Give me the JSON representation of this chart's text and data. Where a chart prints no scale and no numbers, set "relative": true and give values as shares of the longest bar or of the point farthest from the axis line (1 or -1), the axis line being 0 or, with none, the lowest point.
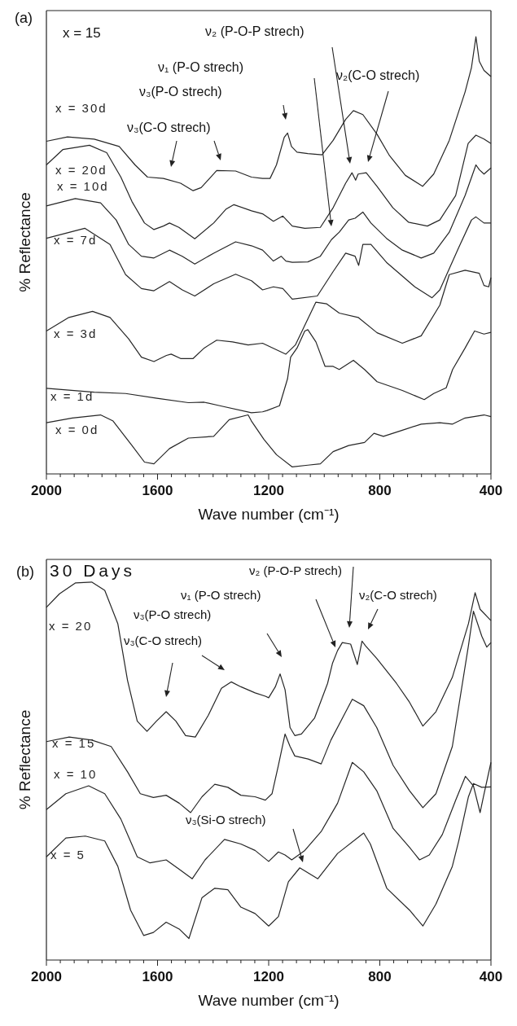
{
  "chart_data": [
    {
      "type": "line",
      "relative": true,
      "tick_labels": "x",
      "xlabel": "Wave number (cm⁻¹)",
      "ylabel": "% Reflectance",
      "xlim": [
        2000,
        400
      ],
      "xticks": [
        2000,
        {
          "value": 1950,
          "label": null
        },
        {
          "value": 1900,
          "label": null
        },
        {
          "value": 1850,
          "label": null
        },
        {
          "value": 1800,
          "label": null
        },
        {
          "value": 1750,
          "label": null
        },
        {
          "value": 1700,
          "label": null
        },
        {
          "value": 1650,
          "label": null
        },
        1600,
        {
          "value": 1550,
          "label": null
        },
        {
          "value": 1500,
          "label": null
        },
        {
          "value": 1450,
          "label": null
        },
        {
          "value": 1400,
          "label": null
        },
        {
          "value": 1350,
          "label": null
        },
        {
          "value": 1300,
          "label": null
        },
        {
          "value": 1250,
          "label": null
        },
        1200,
        {
          "value": 1150,
          "label": null
        },
        {
          "value": 1100,
          "label": null
        },
        {
          "value": 1050,
          "label": null
        },
        {
          "value": 1000,
          "label": null
        },
        {
          "value": 950,
          "label": null
        },
        {
          "value": 900,
          "label": null
        },
        {
          "value": 850,
          "label": null
        },
        800,
        {
          "value": 750,
          "label": null
        },
        {
          "value": 700,
          "label": null
        },
        {
          "value": 650,
          "label": null
        },
        {
          "value": 600,
          "label": null
        },
        {
          "value": 550,
          "label": null
        },
        {
          "value": 500,
          "label": null
        },
        {
          "value": 450,
          "label": null
        },
        400
      ],
      "annotations": [
        "(a)",
        "x = 15",
        "ν₂ (P-O-P strech)",
        "ν₁  (P-O strech)",
        "ν₃(P-O strech)",
        "ν₃(C-O strech)",
        "ν₂(C-O strech)"
      ],
      "series": [
        {
          "name": "x = 30d",
          "color": "#262626",
          "x": [
            2000,
            1924,
            1828,
            1738,
            1681,
            1636,
            1579,
            1517,
            1472,
            1443,
            1387,
            1319,
            1262,
            1222,
            1195,
            1172,
            1144,
            1132,
            1118,
            1098,
            1059,
            1008,
            968,
            923,
            895,
            861,
            810,
            765,
            708,
            646,
            606,
            550,
            493,
            470,
            454,
            442,
            425,
            400
          ],
          "values": [
            0.761,
            0.771,
            0.766,
            0.749,
            0.707,
            0.679,
            0.676,
            0.665,
            0.648,
            0.655,
            0.694,
            0.693,
            0.679,
            0.676,
            0.676,
            0.707,
            0.77,
            0.78,
            0.749,
            0.736,
            0.733,
            0.73,
            0.763,
            0.811,
            0.831,
            0.822,
            0.777,
            0.728,
            0.683,
            0.658,
            0.686,
            0.763,
            0.874,
            0.93,
            1,
            0.944,
            0.923,
            0.909
          ]
        },
        {
          "name": "x = 20d",
          "color": "#262626",
          "x": [
            2000,
            1941,
            1845,
            1783,
            1732,
            1692,
            1647,
            1613,
            1579,
            1557,
            1523,
            1466,
            1398,
            1353,
            1325,
            1262,
            1222,
            1183,
            1149,
            1115,
            1070,
            1014,
            968,
            923,
            900,
            887,
            878,
            849,
            810,
            753,
            697,
            629,
            584,
            527,
            482,
            454,
            425,
            400
          ],
          "values": [
            0.707,
            0.742,
            0.752,
            0.735,
            0.679,
            0.623,
            0.574,
            0.559,
            0.567,
            0.574,
            0.564,
            0.538,
            0.574,
            0.606,
            0.616,
            0.602,
            0.595,
            0.578,
            0.59,
            0.567,
            0.562,
            0.564,
            0.609,
            0.665,
            0.689,
            0.672,
            0.686,
            0.689,
            0.658,
            0.609,
            0.576,
            0.567,
            0.581,
            0.637,
            0.756,
            0.775,
            0.766,
            0.756
          ]
        },
        {
          "name": "x = 10d",
          "color": "#262626",
          "x": [
            2000,
            1896,
            1805,
            1749,
            1704,
            1658,
            1613,
            1557,
            1511,
            1466,
            1398,
            1319,
            1262,
            1222,
            1183,
            1155,
            1138,
            1115,
            1059,
            1014,
            974,
            946,
            912,
            889,
            861,
            832,
            776,
            719,
            651,
            606,
            550,
            493,
            454,
            442,
            425,
            400
          ],
          "values": [
            0.613,
            0.63,
            0.62,
            0.581,
            0.525,
            0.498,
            0.494,
            0.512,
            0.498,
            0.48,
            0.505,
            0.531,
            0.522,
            0.512,
            0.487,
            0.498,
            0.487,
            0.484,
            0.485,
            0.498,
            0.536,
            0.553,
            0.581,
            0.585,
            0.599,
            0.574,
            0.539,
            0.512,
            0.494,
            0.505,
            0.553,
            0.637,
            0.707,
            0.696,
            0.686,
            0.7
          ]
        },
        {
          "name": "x = 7d",
          "color": "#262626",
          "x": [
            2000,
            1862,
            1771,
            1715,
            1658,
            1613,
            1557,
            1511,
            1466,
            1398,
            1319,
            1262,
            1222,
            1183,
            1149,
            1115,
            1025,
            968,
            923,
            889,
            876,
            861,
            832,
            776,
            674,
            612,
            584,
            516,
            470,
            454,
            425,
            400
          ],
          "values": [
            0.539,
            0.562,
            0.525,
            0.456,
            0.424,
            0.419,
            0.44,
            0.421,
            0.407,
            0.435,
            0.457,
            0.442,
            0.421,
            0.428,
            0.424,
            0.4,
            0.407,
            0.463,
            0.505,
            0.498,
            0.477,
            0.525,
            0.525,
            0.484,
            0.428,
            0.403,
            0.421,
            0.518,
            0.581,
            0.588,
            0.574,
            0.574
          ]
        },
        {
          "name": "x = 3d",
          "color": "#262626",
          "x": [
            2000,
            1919,
            1834,
            1771,
            1704,
            1658,
            1613,
            1568,
            1551,
            1517,
            1472,
            1432,
            1387,
            1330,
            1274,
            1222,
            1138,
            1104,
            1030,
            991,
            946,
            878,
            810,
            719,
            651,
            584,
            550,
            493,
            442,
            425,
            408,
            400
          ],
          "values": [
            0.327,
            0.358,
            0.372,
            0.358,
            0.309,
            0.267,
            0.257,
            0.271,
            0.274,
            0.264,
            0.264,
            0.288,
            0.306,
            0.302,
            0.295,
            0.299,
            0.274,
            0.295,
            0.393,
            0.389,
            0.368,
            0.358,
            0.323,
            0.299,
            0.316,
            0.386,
            0.456,
            0.466,
            0.459,
            0.431,
            0.428,
            0.449
          ]
        },
        {
          "name": "x = 1d",
          "color": "#262626",
          "x": [
            2000,
            1828,
            1715,
            1602,
            1489,
            1432,
            1376,
            1262,
            1222,
            1206,
            1161,
            1132,
            1121,
            1098,
            1070,
            1059,
            1030,
            997,
            968,
            946,
            895,
            855,
            810,
            719,
            640,
            606,
            561,
            538,
            493,
            459,
            425,
            400
          ],
          "values": [
            0.196,
            0.187,
            0.184,
            0.173,
            0.163,
            0.164,
            0.156,
            0.14,
            0.142,
            0.145,
            0.156,
            0.218,
            0.267,
            0.288,
            0.327,
            0.33,
            0.302,
            0.246,
            0.246,
            0.239,
            0.26,
            0.239,
            0.211,
            0.191,
            0.17,
            0.184,
            0.197,
            0.239,
            0.288,
            0.327,
            0.32,
            0.324
          ]
        },
        {
          "name": "x = 0d",
          "color": "#262626",
          "x": [
            2000,
            1907,
            1805,
            1760,
            1692,
            1647,
            1613,
            1557,
            1489,
            1398,
            1342,
            1274,
            1262,
            1217,
            1172,
            1115,
            1059,
            1014,
            968,
            912,
            855,
            821,
            787,
            719,
            651,
            584,
            538,
            493,
            425,
            400
          ],
          "values": [
            0.117,
            0.128,
            0.135,
            0.121,
            0.065,
            0.027,
            0.023,
            0.058,
            0.082,
            0.086,
            0.124,
            0.135,
            0.121,
            0.079,
            0.044,
            0.016,
            0.02,
            0.023,
            0.051,
            0.065,
            0.072,
            0.093,
            0.086,
            0.1,
            0.114,
            0.117,
            0.114,
            0.128,
            0.135,
            0.131
          ]
        }
      ]
    },
    {
      "type": "line",
      "relative": true,
      "tick_labels": "x",
      "xlabel": "Wave number (cm⁻¹)",
      "ylabel": "% Reflectance",
      "xlim": [
        2000,
        400
      ],
      "xticks": [
        2000,
        {
          "value": 1950,
          "label": null
        },
        {
          "value": 1900,
          "label": null
        },
        {
          "value": 1850,
          "label": null
        },
        {
          "value": 1800,
          "label": null
        },
        {
          "value": 1750,
          "label": null
        },
        {
          "value": 1700,
          "label": null
        },
        {
          "value": 1650,
          "label": null
        },
        1600,
        {
          "value": 1550,
          "label": null
        },
        {
          "value": 1500,
          "label": null
        },
        {
          "value": 1450,
          "label": null
        },
        {
          "value": 1400,
          "label": null
        },
        {
          "value": 1350,
          "label": null
        },
        {
          "value": 1300,
          "label": null
        },
        {
          "value": 1250,
          "label": null
        },
        1200,
        {
          "value": 1150,
          "label": null
        },
        {
          "value": 1100,
          "label": null
        },
        {
          "value": 1050,
          "label": null
        },
        {
          "value": 1000,
          "label": null
        },
        {
          "value": 950,
          "label": null
        },
        {
          "value": 900,
          "label": null
        },
        {
          "value": 850,
          "label": null
        },
        800,
        {
          "value": 750,
          "label": null
        },
        {
          "value": 700,
          "label": null
        },
        {
          "value": 650,
          "label": null
        },
        {
          "value": 600,
          "label": null
        },
        {
          "value": 550,
          "label": null
        },
        {
          "value": 500,
          "label": null
        },
        {
          "value": 450,
          "label": null
        },
        400
      ],
      "annotations": [
        "(b)",
        "30 Days",
        "ν₂ (P-O-P strech)",
        "ν₁  (P-O strech)",
        "ν₃(P-O strech)",
        "ν₃(C-O strech)",
        "ν₂(C-O strech)",
        "ν₃(Si-O strech)"
      ],
      "series": [
        {
          "name": "x = 20",
          "color": "#262626",
          "x": [
            2000,
            1953,
            1895,
            1837,
            1790,
            1743,
            1708,
            1673,
            1638,
            1604,
            1569,
            1534,
            1499,
            1464,
            1417,
            1370,
            1335,
            1300,
            1249,
            1212,
            1200,
            1176,
            1159,
            1141,
            1123,
            1106,
            1082,
            1035,
            988,
            970,
            952,
            935,
            905,
            881,
            864,
            852,
            811,
            740,
            693,
            645,
            598,
            539,
            481,
            457,
            439,
            400
          ],
          "values": [
            0.933,
            0.969,
            0.998,
            1.0,
            0.978,
            0.89,
            0.74,
            0.632,
            0.605,
            0.632,
            0.657,
            0.632,
            0.594,
            0.59,
            0.648,
            0.719,
            0.736,
            0.723,
            0.707,
            0.698,
            0.694,
            0.723,
            0.757,
            0.715,
            0.615,
            0.594,
            0.598,
            0.64,
            0.732,
            0.786,
            0.819,
            0.84,
            0.836,
            0.782,
            0.844,
            0.832,
            0.798,
            0.732,
            0.682,
            0.619,
            0.657,
            0.748,
            0.89,
            0.972,
            0.928,
            0.898
          ]
        },
        {
          "name": "x = 15",
          "color": "#262626",
          "x": [
            2000,
            1918,
            1837,
            1767,
            1708,
            1662,
            1615,
            1569,
            1522,
            1481,
            1440,
            1394,
            1347,
            1300,
            1249,
            1212,
            1188,
            1165,
            1141,
            1123,
            1106,
            1058,
            1011,
            976,
            929,
            899,
            858,
            811,
            752,
            693,
            645,
            598,
            539,
            481,
            463,
            433,
            415,
            400
          ],
          "values": [
            0.578,
            0.59,
            0.582,
            0.565,
            0.498,
            0.44,
            0.43,
            0.436,
            0.415,
            0.39,
            0.432,
            0.465,
            0.457,
            0.436,
            0.432,
            0.423,
            0.44,
            0.515,
            0.598,
            0.565,
            0.54,
            0.532,
            0.519,
            0.582,
            0.648,
            0.69,
            0.673,
            0.615,
            0.515,
            0.448,
            0.403,
            0.44,
            0.565,
            0.832,
            0.923,
            0.857,
            0.828,
            0.84
          ]
        },
        {
          "name": "x = 10",
          "color": "#262626",
          "x": [
            2000,
            1930,
            1848,
            1790,
            1732,
            1673,
            1627,
            1569,
            1522,
            1475,
            1429,
            1359,
            1300,
            1249,
            1200,
            1165,
            1141,
            1117,
            1070,
            1011,
            952,
            899,
            858,
            811,
            752,
            693,
            657,
            622,
            575,
            527,
            492,
            463,
            439,
            427,
            400
          ],
          "values": [
            0.398,
            0.44,
            0.461,
            0.44,
            0.373,
            0.273,
            0.257,
            0.265,
            0.24,
            0.215,
            0.265,
            0.319,
            0.307,
            0.29,
            0.261,
            0.286,
            0.278,
            0.265,
            0.29,
            0.34,
            0.415,
            0.523,
            0.498,
            0.448,
            0.348,
            0.298,
            0.265,
            0.278,
            0.332,
            0.423,
            0.486,
            0.461,
            0.39,
            0.432,
            0.523
          ]
        },
        {
          "name": "x = 5",
          "color": "#262626",
          "x": [
            2000,
            1930,
            1860,
            1790,
            1743,
            1697,
            1650,
            1615,
            1569,
            1522,
            1487,
            1440,
            1394,
            1347,
            1300,
            1249,
            1200,
            1165,
            1129,
            1088,
            1023,
            952,
            858,
            834,
            775,
            693,
            645,
            598,
            539,
            516,
            481,
            463,
            433,
            400
          ],
          "values": [
            0.273,
            0.323,
            0.328,
            0.315,
            0.248,
            0.132,
            0.065,
            0.073,
            0.1,
            0.082,
            0.057,
            0.165,
            0.19,
            0.186,
            0.14,
            0.123,
            0.09,
            0.115,
            0.207,
            0.244,
            0.215,
            0.282,
            0.336,
            0.307,
            0.19,
            0.132,
            0.09,
            0.148,
            0.248,
            0.315,
            0.432,
            0.467,
            0.457,
            0.458
          ]
        }
      ]
    }
  ]
}
